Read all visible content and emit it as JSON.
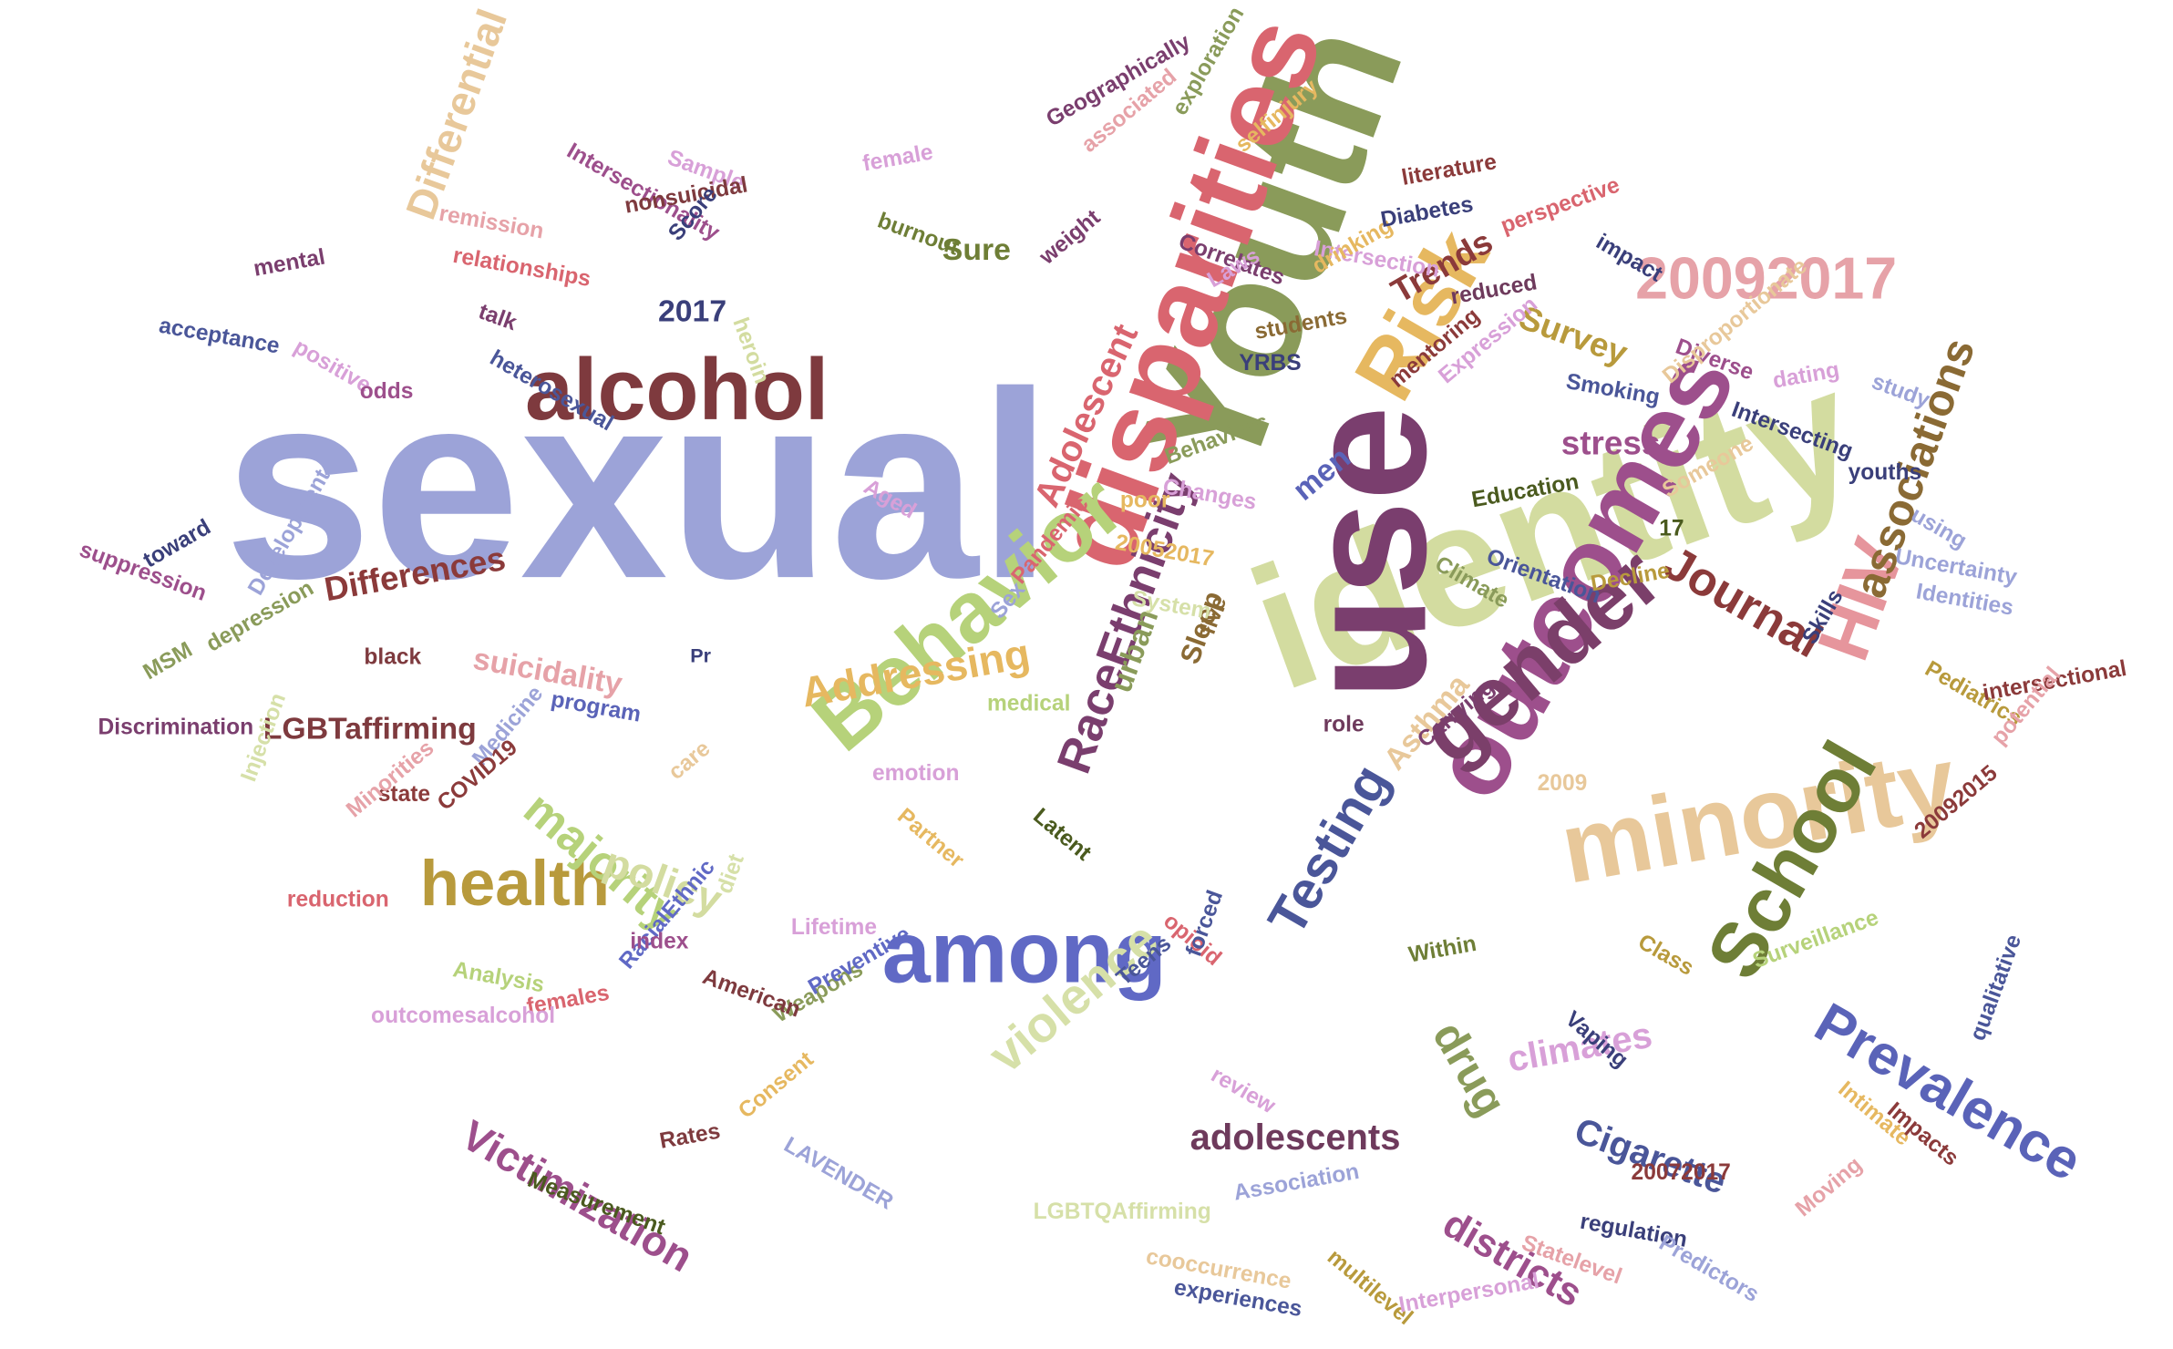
{
  "words": [
    {
      "text": "sexual",
      "color": "#9ca3d8"
    },
    {
      "text": "Youth",
      "color": "#8a9b5a"
    },
    {
      "text": "identity",
      "color": "#d3dca0"
    },
    {
      "text": "use",
      "color": "#7a3e6e"
    },
    {
      "text": "disparities",
      "color": "#d9656f"
    },
    {
      "text": "outcomes",
      "color": "#9d4f8c"
    },
    {
      "text": "Behavior",
      "color": "#b6d27a"
    },
    {
      "text": "among",
      "color": "#6069c5"
    },
    {
      "text": "minority",
      "color": "#e8c89a"
    },
    {
      "text": "gender",
      "color": "#7b3f6a"
    },
    {
      "text": "alcohol",
      "color": "#7e3a3e"
    },
    {
      "text": "Risk",
      "color": "#e6b860"
    },
    {
      "text": "School",
      "color": "#6e7e36"
    },
    {
      "text": "HIV",
      "color": "#e6959c"
    },
    {
      "text": "health",
      "color": "#b89a3c"
    },
    {
      "text": "20092017",
      "color": "#e6a2a8"
    },
    {
      "text": "Prevalence",
      "color": "#5a63b8"
    },
    {
      "text": "Testing",
      "color": "#4a5699"
    },
    {
      "text": "violence",
      "color": "#d6e0a8"
    },
    {
      "text": "RaceEthnicity",
      "color": "#7a3e6e"
    },
    {
      "text": "associations",
      "color": "#8a6a34"
    },
    {
      "text": "majority",
      "color": "#b6d27a"
    },
    {
      "text": "Journal",
      "color": "#8b3a3a"
    },
    {
      "text": "Addressing",
      "color": "#e6b860"
    },
    {
      "text": "policy",
      "color": "#d3dca0"
    },
    {
      "text": "Differential",
      "color": "#e8c89a"
    },
    {
      "text": "drug",
      "color": "#8a9b5a"
    },
    {
      "text": "Victimization",
      "color": "#9d4f8c"
    },
    {
      "text": "districts",
      "color": "#9d4f8c"
    },
    {
      "text": "Cigarette",
      "color": "#4a5699"
    },
    {
      "text": "adolescents",
      "color": "#6e3a5c"
    },
    {
      "text": "Adolescent",
      "color": "#d9656f"
    },
    {
      "text": "climates",
      "color": "#d8a0d8"
    },
    {
      "text": "stress",
      "color": "#9d4f8c"
    },
    {
      "text": "Survey",
      "color": "#b89a3c"
    },
    {
      "text": "Trends",
      "color": "#8b3a3a"
    },
    {
      "text": "Differences",
      "color": "#8b3a3a"
    },
    {
      "text": "suicidality",
      "color": "#e6a2a8"
    },
    {
      "text": "LGBTaffirming",
      "color": "#7e3a3e"
    },
    {
      "text": "urban",
      "color": "#8a9b5a"
    },
    {
      "text": "Asthma",
      "color": "#e8c89a"
    },
    {
      "text": "Sleep",
      "color": "#8a6a34"
    },
    {
      "text": "men",
      "color": "#5a63b8"
    },
    {
      "text": "2017",
      "color": "#3a3f7a"
    },
    {
      "text": "Sure",
      "color": "#6e7e36"
    },
    {
      "text": "Measurement",
      "color": "#4a5a1e"
    },
    {
      "text": "Weapons",
      "color": "#8a9b5a"
    },
    {
      "text": "Preventive",
      "color": "#6069c5"
    },
    {
      "text": "RacialEthnic",
      "color": "#6069c5"
    },
    {
      "text": "Intersectionality",
      "color": "#9d4f8c"
    },
    {
      "text": "Discrimination",
      "color": "#7a3e6e"
    },
    {
      "text": "exploration",
      "color": "#8a9b5a"
    },
    {
      "text": "Geographically",
      "color": "#7a3e6e"
    },
    {
      "text": "selfinjury",
      "color": "#e6b860"
    },
    {
      "text": "Sample",
      "color": "#d8a0d8"
    },
    {
      "text": "female",
      "color": "#d8a0d8"
    },
    {
      "text": "associated",
      "color": "#e6a2a8"
    },
    {
      "text": "nonsuicidal",
      "color": "#7e3a3e"
    },
    {
      "text": "burnout",
      "color": "#6e7e36"
    },
    {
      "text": "remission",
      "color": "#e6a2a8"
    },
    {
      "text": "relationships",
      "color": "#d9656f"
    },
    {
      "text": "Score",
      "color": "#3a3f7a"
    },
    {
      "text": "Correlates",
      "color": "#7a3e6e"
    },
    {
      "text": "Intersection",
      "color": "#d8a0d8"
    },
    {
      "text": "drinking",
      "color": "#e6b860"
    },
    {
      "text": "Laws",
      "color": "#d8a0d8"
    },
    {
      "text": "students",
      "color": "#8a6a34"
    },
    {
      "text": "literature",
      "color": "#8b3a3a"
    },
    {
      "text": "Diabetes",
      "color": "#3a3f7a"
    },
    {
      "text": "impact",
      "color": "#3a3f7a"
    },
    {
      "text": "perspective",
      "color": "#d9656f"
    },
    {
      "text": "reduced",
      "color": "#6e3a5c"
    },
    {
      "text": "mental",
      "color": "#7a3e6e"
    },
    {
      "text": "acceptance",
      "color": "#4a5699"
    },
    {
      "text": "positive",
      "color": "#d8a0d8"
    },
    {
      "text": "talk",
      "color": "#7a3e6e"
    },
    {
      "text": "heterosexual",
      "color": "#4a5699"
    },
    {
      "text": "weight",
      "color": "#7a3e6e"
    },
    {
      "text": "heroin",
      "color": "#d3dca0"
    },
    {
      "text": "YRBS",
      "color": "#3a3f7a"
    },
    {
      "text": "odds",
      "color": "#9d4f8c"
    },
    {
      "text": "Aged",
      "color": "#d8a0d8"
    },
    {
      "text": "suppression",
      "color": "#9d4f8c"
    },
    {
      "text": "toward",
      "color": "#3a3f7a"
    },
    {
      "text": "Development",
      "color": "#9ca3d8"
    },
    {
      "text": "depression",
      "color": "#8a9b5a"
    },
    {
      "text": "black",
      "color": "#7e3a3e"
    },
    {
      "text": "MSM",
      "color": "#8a9b5a"
    },
    {
      "text": "program",
      "color": "#5a63b8"
    },
    {
      "text": "Pr",
      "color": "#3a3f7a"
    },
    {
      "text": "Sex",
      "color": "#9ca3d8"
    },
    {
      "text": "Pandemic",
      "color": "#d9656f"
    },
    {
      "text": "System",
      "color": "#d6e0a8"
    },
    {
      "text": "20052017",
      "color": "#e6b860"
    },
    {
      "text": "poor",
      "color": "#e6b860"
    },
    {
      "text": "Changes",
      "color": "#d8a0d8"
    },
    {
      "text": "Behaviors",
      "color": "#8a9b5a"
    },
    {
      "text": "Education",
      "color": "#4a5a1e"
    },
    {
      "text": "Climate",
      "color": "#8a9b5a"
    },
    {
      "text": "Orientation",
      "color": "#4a5699"
    },
    {
      "text": "Decline",
      "color": "#b89a3c"
    },
    {
      "text": "17",
      "color": "#4a5a1e"
    },
    {
      "text": "Someone",
      "color": "#e8c89a"
    },
    {
      "text": "youths",
      "color": "#3a3f7a"
    },
    {
      "text": "using",
      "color": "#9ca3d8"
    },
    {
      "text": "Uncertainty",
      "color": "#9ca3d8"
    },
    {
      "text": "Identities",
      "color": "#9ca3d8"
    },
    {
      "text": "Skills",
      "color": "#3a3f7a"
    },
    {
      "text": "Pediatrics",
      "color": "#b89a3c"
    },
    {
      "text": "intersectional",
      "color": "#8b3a3a"
    },
    {
      "text": "potential",
      "color": "#e6a2a8"
    },
    {
      "text": "20092015",
      "color": "#8b3a3a"
    },
    {
      "text": "Diverse",
      "color": "#9d4f8c"
    },
    {
      "text": "dating",
      "color": "#d8a0d8"
    },
    {
      "text": "study",
      "color": "#9ca3d8"
    },
    {
      "text": "Smoking",
      "color": "#4a5699"
    },
    {
      "text": "Intersecting",
      "color": "#3a3f7a"
    },
    {
      "text": "Expression",
      "color": "#d8a0d8"
    },
    {
      "text": "Disproportionate",
      "color": "#e8c89a"
    },
    {
      "text": "mentoring",
      "color": "#8b3a3a"
    },
    {
      "text": "five",
      "color": "#8a6a34"
    },
    {
      "text": "role",
      "color": "#6e3a5c"
    },
    {
      "text": "Carrying",
      "color": "#7a3e6e"
    },
    {
      "text": "2009",
      "color": "#e8c89a"
    },
    {
      "text": "Latent",
      "color": "#4a5a1e"
    },
    {
      "text": "medical",
      "color": "#b6d27a"
    },
    {
      "text": "emotion",
      "color": "#d8a0d8"
    },
    {
      "text": "Partner",
      "color": "#e6b860"
    },
    {
      "text": "care",
      "color": "#e8c89a"
    },
    {
      "text": "Medicine",
      "color": "#9ca3d8"
    },
    {
      "text": "COVID19",
      "color": "#8b3a3a"
    },
    {
      "text": "state",
      "color": "#8b3a3a"
    },
    {
      "text": "Minorities",
      "color": "#e6a2a8"
    },
    {
      "text": "Injection",
      "color": "#d6e0a8"
    },
    {
      "text": "reduction",
      "color": "#d9656f"
    },
    {
      "text": "index",
      "color": "#9d4f8c"
    },
    {
      "text": "diet",
      "color": "#d6e0a8"
    },
    {
      "text": "Lifetime",
      "color": "#d8a0d8"
    },
    {
      "text": "American",
      "color": "#7e3a3e"
    },
    {
      "text": "Analysis",
      "color": "#b6d27a"
    },
    {
      "text": "opioid",
      "color": "#d9656f"
    },
    {
      "text": "forced",
      "color": "#4a5699"
    },
    {
      "text": "Teens",
      "color": "#4a5699"
    },
    {
      "text": "Within",
      "color": "#6e7e36"
    },
    {
      "text": "Class",
      "color": "#b89a3c"
    },
    {
      "text": "Surveillance",
      "color": "#b6d27a"
    },
    {
      "text": "Vaping",
      "color": "#3a3f7a"
    },
    {
      "text": "females",
      "color": "#d9656f"
    },
    {
      "text": "outcomesalcohol",
      "color": "#d8a0d8"
    },
    {
      "text": "Rates",
      "color": "#7e3a3e"
    },
    {
      "text": "Consent",
      "color": "#e6b860"
    },
    {
      "text": "LAVENDER",
      "color": "#9ca3d8"
    },
    {
      "text": "review",
      "color": "#d8a0d8"
    },
    {
      "text": "Association",
      "color": "#9ca3d8"
    },
    {
      "text": "LGBTQAffirming",
      "color": "#d6e0a8"
    },
    {
      "text": "cooccurrence",
      "color": "#e8c89a"
    },
    {
      "text": "experiences",
      "color": "#4a5699"
    },
    {
      "text": "multilevel",
      "color": "#b89a3c"
    },
    {
      "text": "Interpersonal",
      "color": "#d8a0d8"
    },
    {
      "text": "Statelevel",
      "color": "#e6a2a8"
    },
    {
      "text": "regulation",
      "color": "#3a3f7a"
    },
    {
      "text": "20072017",
      "color": "#8b3a3a"
    },
    {
      "text": "Predictors",
      "color": "#9ca3d8"
    },
    {
      "text": "Moving",
      "color": "#e6a2a8"
    },
    {
      "text": "Intimate",
      "color": "#e6b860"
    },
    {
      "text": "Impacts",
      "color": "#8b3a3a"
    },
    {
      "text": "qualitative",
      "color": "#4a5699"
    }
  ]
}
